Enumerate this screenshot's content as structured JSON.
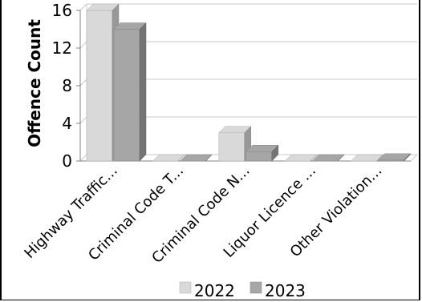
{
  "chart_data": {
    "type": "bar",
    "style": "3d-clustered",
    "ylabel": "Offence Count",
    "xlabel": "",
    "title": "",
    "categories": [
      "Highway Traffic...",
      "Criminal Code T...",
      "Criminal Code N...",
      "Liquor Licence ...",
      "Other Violation..."
    ],
    "series": [
      {
        "name": "2022",
        "values": [
          16,
          0,
          3,
          0,
          0
        ],
        "color": "#d9d9d9"
      },
      {
        "name": "2023",
        "values": [
          14,
          0,
          1,
          0,
          0.1
        ],
        "color": "#a6a6a6"
      }
    ],
    "ylim": [
      0,
      16
    ],
    "yticks": [
      0,
      4,
      8,
      12,
      16
    ],
    "grid": true,
    "legend_position": "bottom"
  }
}
